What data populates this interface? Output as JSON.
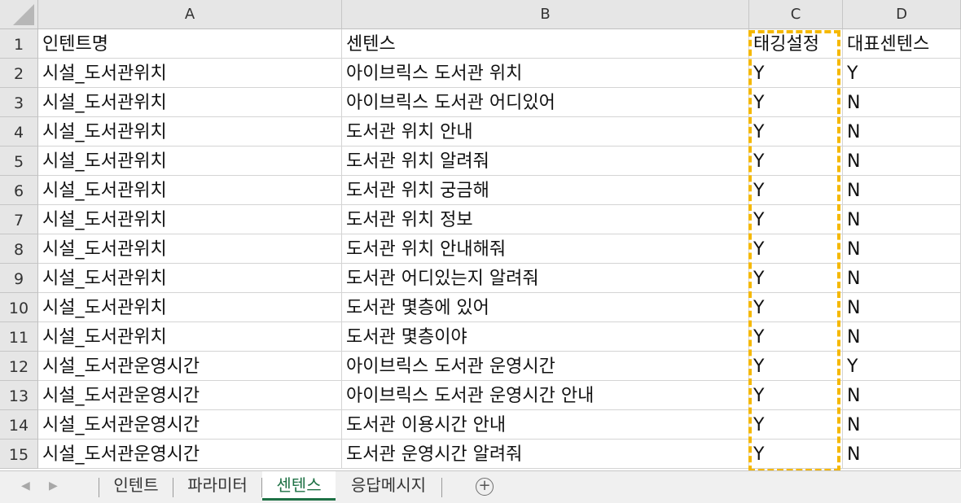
{
  "columns": [
    "A",
    "B",
    "C",
    "D"
  ],
  "rows": [
    {
      "num": "1",
      "a": "인텐트명",
      "b": "센텐스",
      "c": "태깅설정",
      "d": "대표센텐스"
    },
    {
      "num": "2",
      "a": "시설_도서관위치",
      "b": "아이브릭스 도서관 위치",
      "c": "Y",
      "d": "Y"
    },
    {
      "num": "3",
      "a": "시설_도서관위치",
      "b": "아이브릭스 도서관 어디있어",
      "c": "Y",
      "d": "N"
    },
    {
      "num": "4",
      "a": "시설_도서관위치",
      "b": "도서관 위치 안내",
      "c": "Y",
      "d": "N"
    },
    {
      "num": "5",
      "a": "시설_도서관위치",
      "b": "도서관 위치 알려줘",
      "c": "Y",
      "d": "N"
    },
    {
      "num": "6",
      "a": "시설_도서관위치",
      "b": "도서관 위치 궁금해",
      "c": "Y",
      "d": "N"
    },
    {
      "num": "7",
      "a": "시설_도서관위치",
      "b": "도서관 위치 정보",
      "c": "Y",
      "d": "N"
    },
    {
      "num": "8",
      "a": "시설_도서관위치",
      "b": "도서관 위치 안내해줘",
      "c": "Y",
      "d": "N"
    },
    {
      "num": "9",
      "a": "시설_도서관위치",
      "b": "도서관 어디있는지 알려줘",
      "c": "Y",
      "d": "N"
    },
    {
      "num": "10",
      "a": "시설_도서관위치",
      "b": "도서관 몇층에 있어",
      "c": "Y",
      "d": "N"
    },
    {
      "num": "11",
      "a": "시설_도서관위치",
      "b": "도서관 몇층이야",
      "c": "Y",
      "d": "N"
    },
    {
      "num": "12",
      "a": "시설_도서관운영시간",
      "b": "아이브릭스 도서관 운영시간",
      "c": "Y",
      "d": "Y"
    },
    {
      "num": "13",
      "a": "시설_도서관운영시간",
      "b": "아이브릭스 도서관 운영시간 안내",
      "c": "Y",
      "d": "N"
    },
    {
      "num": "14",
      "a": "시설_도서관운영시간",
      "b": "도서관 이용시간 안내",
      "c": "Y",
      "d": "N"
    },
    {
      "num": "15",
      "a": "시설_도서관운영시간",
      "b": "도서관 운영시간 알려줘",
      "c": "Y",
      "d": "N"
    }
  ],
  "tabs": [
    {
      "label": "인텐트",
      "active": false
    },
    {
      "label": "파라미터",
      "active": false
    },
    {
      "label": "센텐스",
      "active": true
    },
    {
      "label": "응답메시지",
      "active": false
    }
  ],
  "add_sheet_symbol": "+",
  "nav_prev": "◀",
  "nav_next": "▶",
  "colors": {
    "selection_border": "#f5b800",
    "active_tab": "#1e7145",
    "header_bg": "#e6e6e6"
  }
}
